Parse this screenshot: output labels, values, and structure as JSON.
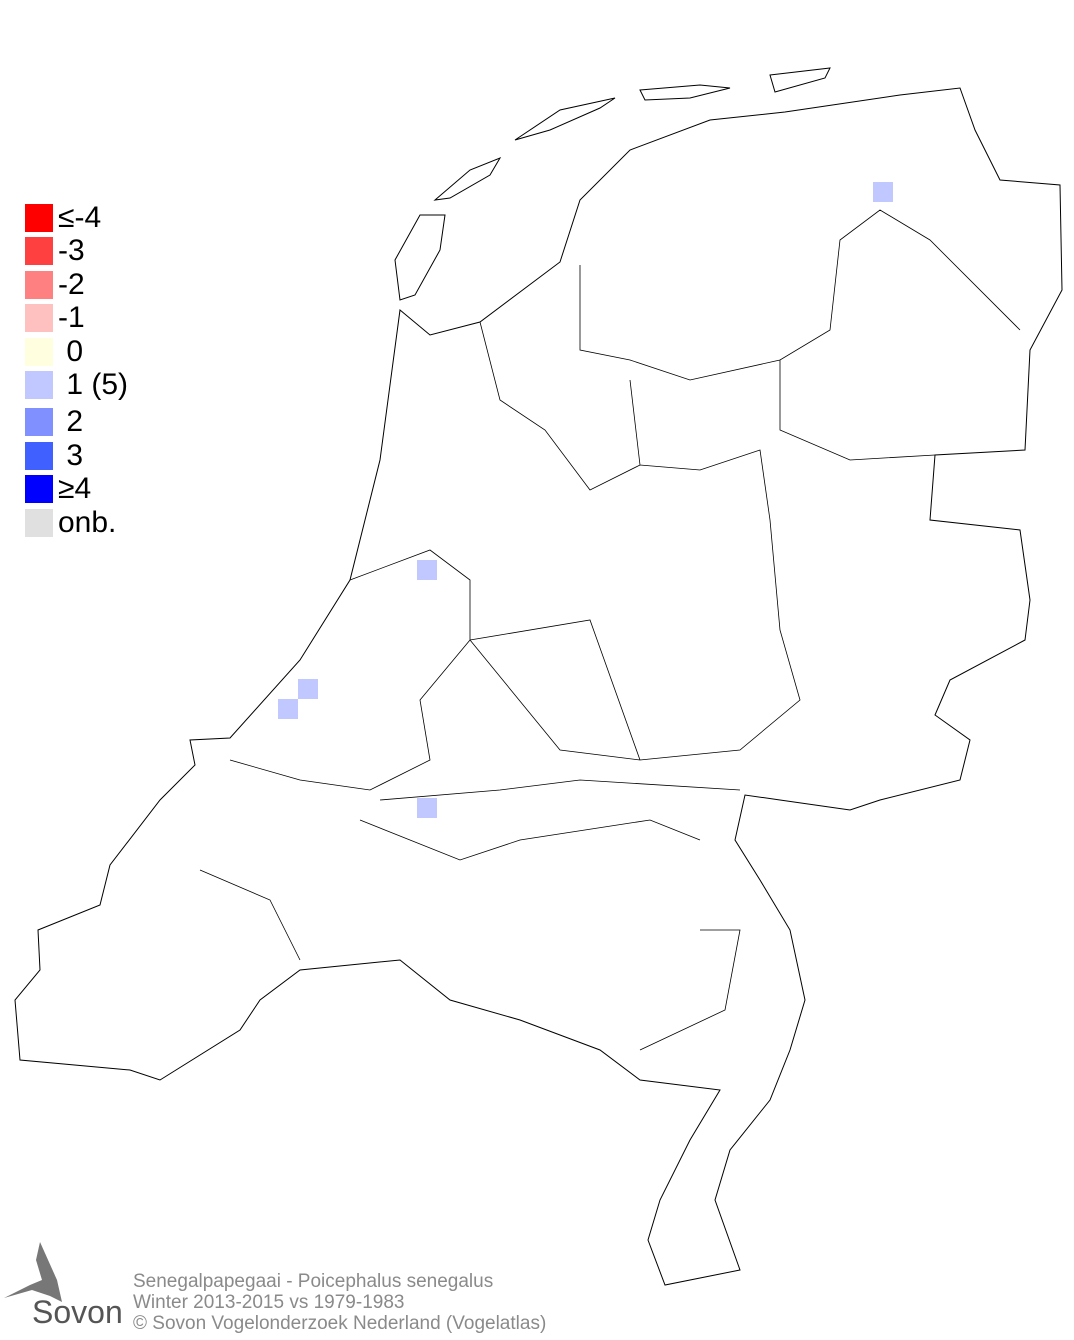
{
  "legend": {
    "items": [
      {
        "label": "≤-4",
        "color": "#ff0000"
      },
      {
        "label": "-3",
        "color": "#ff4040"
      },
      {
        "label": "-2",
        "color": "#ff8080"
      },
      {
        "label": "-1",
        "color": "#ffc0c0"
      },
      {
        "label": " 0",
        "color": "#ffffe0"
      },
      {
        "label": " 1 (5)",
        "color": "#c0c8ff"
      },
      {
        "label": " 2",
        "color": "#8090ff"
      },
      {
        "label": " 3",
        "color": "#4060ff"
      },
      {
        "label": "≥4",
        "color": "#0000ff"
      },
      {
        "label": "onb.",
        "color": "#e0e0e0"
      }
    ]
  },
  "map": {
    "region": "Netherlands",
    "cells": [
      {
        "value": 1,
        "color": "#c0c8ff",
        "location": "Groningen"
      },
      {
        "value": 1,
        "color": "#c0c8ff",
        "location": "Amsterdam"
      },
      {
        "value": 1,
        "color": "#c0c8ff",
        "location": "Den Haag"
      },
      {
        "value": 1,
        "color": "#c0c8ff",
        "location": "Den Haag"
      },
      {
        "value": 1,
        "color": "#c0c8ff",
        "location": "Dordrecht"
      }
    ]
  },
  "footer": {
    "line1": "Senegalpapegaai - Poicephalus senegalus",
    "line2": "Winter 2013-2015 vs 1979-1983",
    "line3": "© Sovon Vogelonderzoek Nederland (Vogelatlas)"
  },
  "logo": {
    "text": "Sovon"
  }
}
